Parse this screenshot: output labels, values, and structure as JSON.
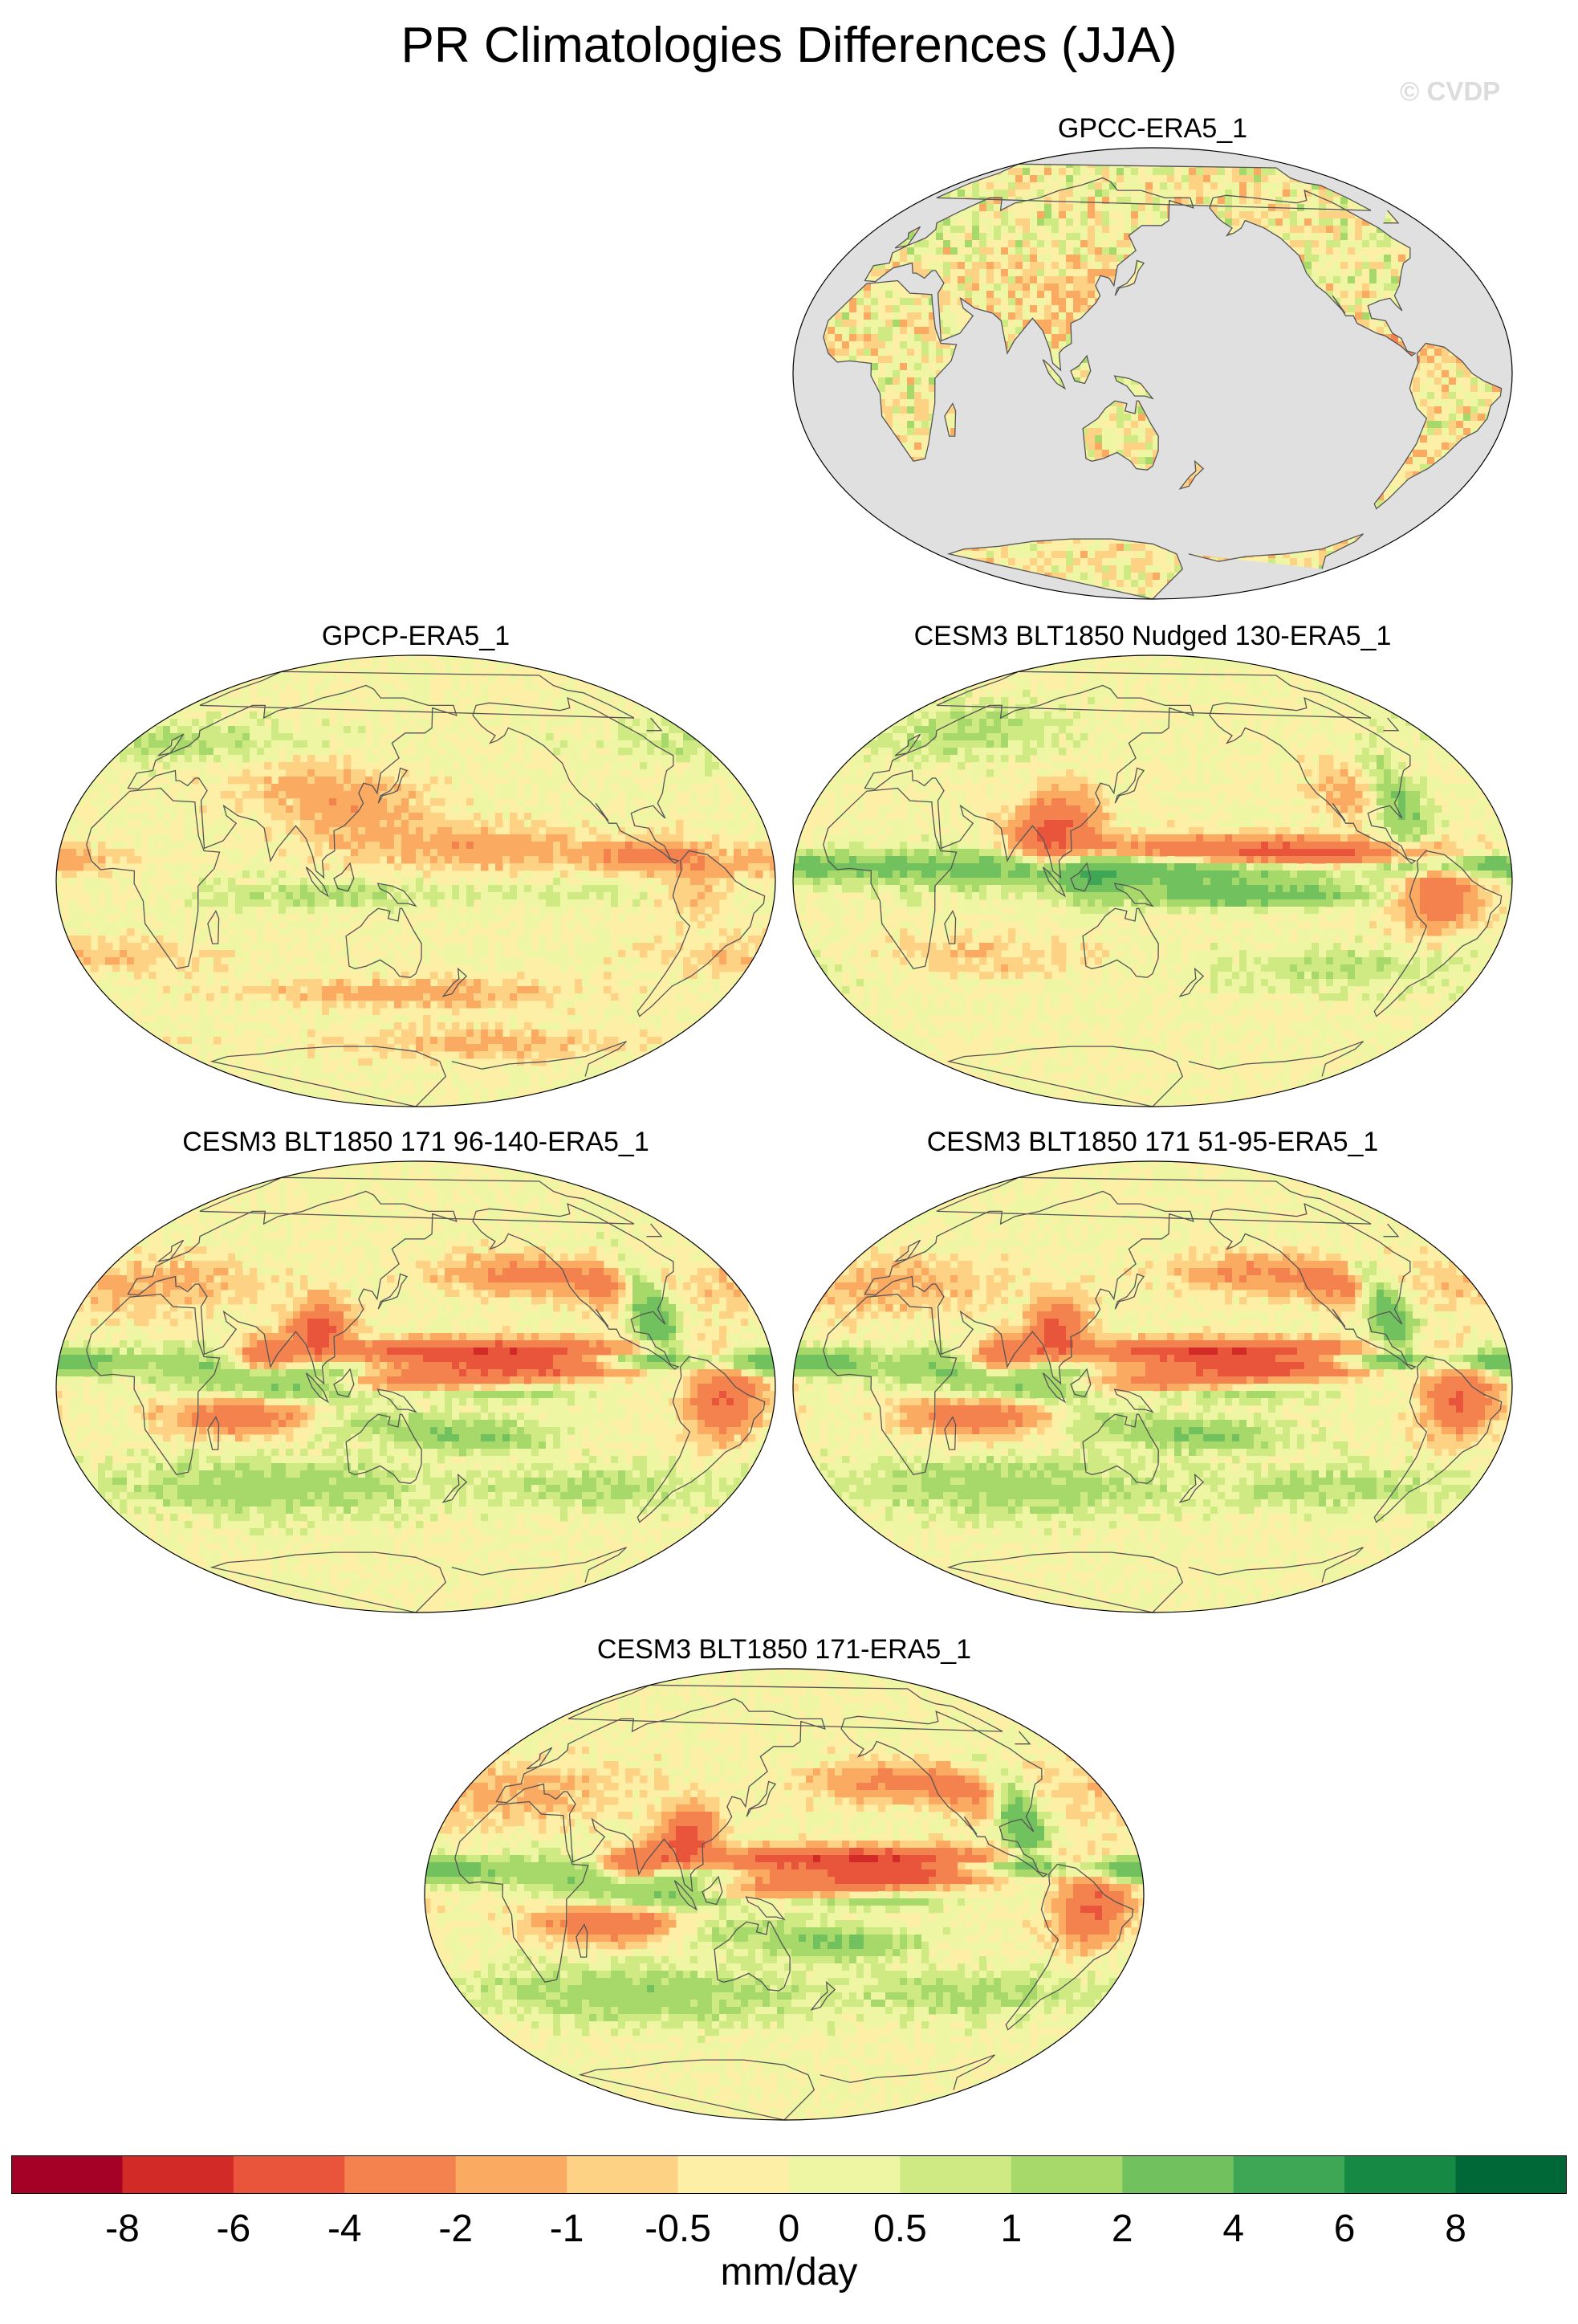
{
  "figure": {
    "title": "PR Climatologies Differences (JJA)",
    "watermark": "© CVDP"
  },
  "panels": [
    {
      "id": "gpcc",
      "title": "GPCC-ERA5_1",
      "land_only": true
    },
    {
      "id": "gpcp",
      "title": "GPCP-ERA5_1",
      "land_only": false
    },
    {
      "id": "nudged",
      "title": "CESM3 BLT1850 Nudged 130-ERA5_1",
      "land_only": false
    },
    {
      "id": "r96",
      "title": "CESM3 BLT1850 171 96-140-ERA5_1",
      "land_only": false
    },
    {
      "id": "r51",
      "title": "CESM3 BLT1850 171 51-95-ERA5_1",
      "land_only": false
    },
    {
      "id": "r171",
      "title": "CESM3 BLT1850 171-ERA5_1",
      "land_only": false
    }
  ],
  "colorbar": {
    "units": "mm/day",
    "labels": [
      "-8",
      "-6",
      "-4",
      "-2",
      "-1",
      "-0.5",
      "0",
      "0.5",
      "1",
      "2",
      "4",
      "6",
      "8"
    ],
    "colors": [
      "#a50026",
      "#d22a27",
      "#e8553a",
      "#f4824f",
      "#fbaa62",
      "#fdd284",
      "#fdf0a6",
      "#eef6a4",
      "#cfea82",
      "#a6d86a",
      "#72c15f",
      "#3ea755",
      "#168a45",
      "#006837"
    ],
    "missing_color": "#e0e0e0",
    "coast_color": "#555555"
  }
}
